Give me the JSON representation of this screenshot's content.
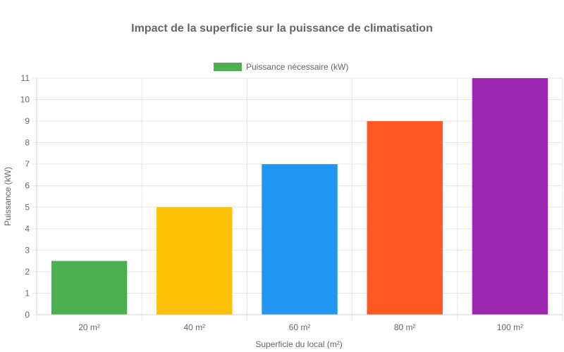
{
  "chart_data": {
    "type": "bar",
    "title": "Impact de la superficie sur la puissance de climatisation",
    "xlabel": "Superficie du local (m²)",
    "ylabel": "Puissance (kW)",
    "categories": [
      "20 m²",
      "40 m²",
      "60 m²",
      "80 m²",
      "100 m²"
    ],
    "series": [
      {
        "name": "Puissance nécessaire (kW)",
        "values": [
          2.5,
          5,
          7,
          9,
          11
        ]
      }
    ],
    "bar_colors": [
      "#4CAF50",
      "#FFC107",
      "#2196F3",
      "#FF5722",
      "#9C27B0"
    ],
    "legend_color": "#4CAF50",
    "ylim": [
      0,
      11
    ],
    "y_ticks": [
      0,
      1,
      2,
      3,
      4,
      5,
      6,
      7,
      8,
      9,
      10,
      11
    ],
    "grid": true,
    "legend_position": "top"
  }
}
